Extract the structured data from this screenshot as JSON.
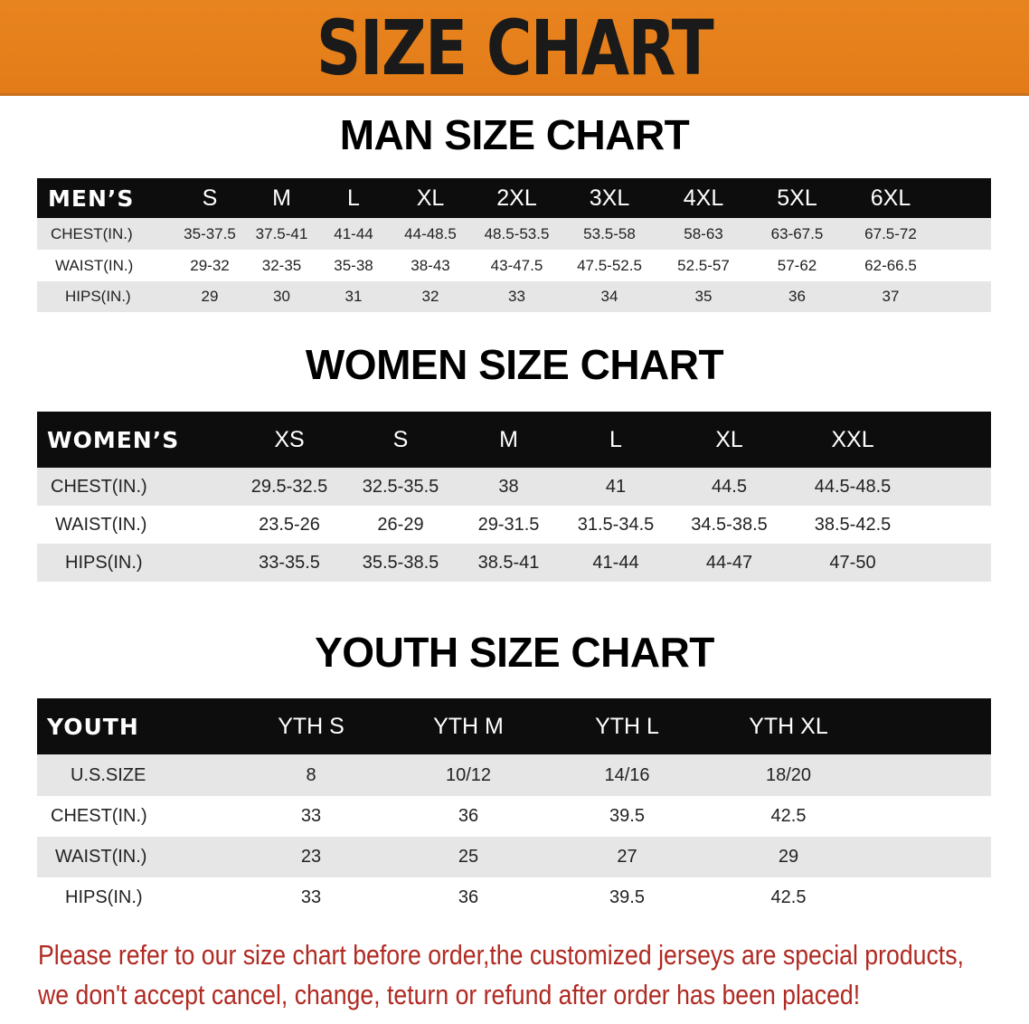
{
  "banner": {
    "title": "SIZE CHART",
    "color": "#E8801E"
  },
  "men": {
    "title": "MAN SIZE CHART",
    "header": [
      "MEN’S",
      "S",
      "M",
      "L",
      "XL",
      "2XL",
      "3XL",
      "4XL",
      "5XL",
      "6XL"
    ],
    "rows": [
      [
        "CHEST(IN.)",
        "35-37.5",
        "37.5-41",
        "41-44",
        "44-48.5",
        "48.5-53.5",
        "53.5-58",
        "58-63",
        "63-67.5",
        "67.5-72"
      ],
      [
        "WAIST(IN.)",
        "29-32",
        "32-35",
        "35-38",
        "38-43",
        "43-47.5",
        "47.5-52.5",
        "52.5-57",
        "57-62",
        "62-66.5"
      ],
      [
        "HIPS(IN.)",
        "29",
        "30",
        "31",
        "32",
        "33",
        "34",
        "35",
        "36",
        "37"
      ]
    ]
  },
  "women": {
    "title": "WOMEN SIZE CHART",
    "header": [
      "WOMEN’S",
      "XS",
      "S",
      "M",
      "L",
      "XL",
      "XXL"
    ],
    "rows": [
      [
        "CHEST(IN.)",
        "29.5-32.5",
        "32.5-35.5",
        "38",
        "41",
        "44.5",
        "44.5-48.5"
      ],
      [
        "WAIST(IN.)",
        "23.5-26",
        "26-29",
        "29-31.5",
        "31.5-34.5",
        "34.5-38.5",
        "38.5-42.5"
      ],
      [
        "HIPS(IN.)",
        "33-35.5",
        "35.5-38.5",
        "38.5-41",
        "41-44",
        "44-47",
        "47-50"
      ]
    ]
  },
  "youth": {
    "title": "YOUTH SIZE CHART",
    "header": [
      "YOUTH",
      "YTH S",
      "YTH M",
      "YTH L",
      "YTH XL"
    ],
    "rows": [
      [
        "U.S.SIZE",
        "8",
        "10/12",
        "14/16",
        "18/20"
      ],
      [
        "CHEST(IN.)",
        "33",
        "36",
        "39.5",
        "42.5"
      ],
      [
        "WAIST(IN.)",
        "23",
        "25",
        "27",
        "29"
      ],
      [
        "HIPS(IN.)",
        "33",
        "36",
        "39.5",
        "42.5"
      ]
    ]
  },
  "notice": {
    "line1": "Please refer to our size chart before order,the customized jerseys are special products,",
    "line2": "we don't accept cancel, change, teturn or refund after order has been placed!",
    "color": "#B02A22"
  }
}
